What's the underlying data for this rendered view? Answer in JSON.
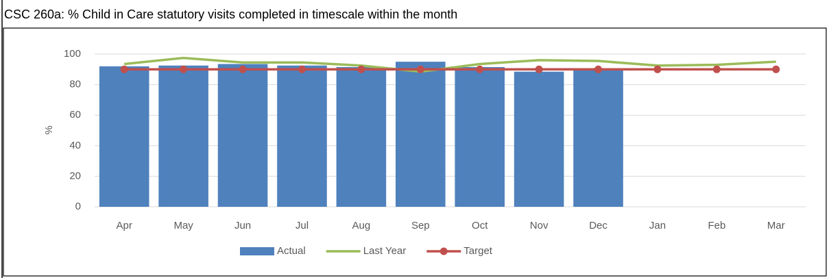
{
  "chart_data": {
    "type": "combo",
    "title": "CSC 260a: % Child in Care statutory visits completed in timescale within the month",
    "y_label": "%",
    "categories": [
      "Apr",
      "May",
      "Jun",
      "Jul",
      "Aug",
      "Sep",
      "Oct",
      "Nov",
      "Dec",
      "Jan",
      "Feb",
      "Mar"
    ],
    "series": [
      {
        "name": "Actual",
        "type": "bar",
        "color": "#4f81bd",
        "values": [
          92,
          92.5,
          93.5,
          92.5,
          91.5,
          95,
          91.5,
          88.5,
          90.5,
          null,
          null,
          null
        ]
      },
      {
        "name": "Last Year",
        "type": "line",
        "color": "#9bbb59",
        "values": [
          93.5,
          97.5,
          94.5,
          94.5,
          92.5,
          88.5,
          93.5,
          96,
          95.5,
          92.5,
          93,
          95
        ]
      },
      {
        "name": "Target",
        "type": "line",
        "color": "#c0504d",
        "marker": "circle",
        "values": [
          90,
          90,
          90,
          90,
          90,
          90,
          90,
          90,
          90,
          90,
          90,
          90
        ]
      }
    ],
    "ylim": [
      0,
      100
    ],
    "yticks": [
      0,
      20,
      40,
      60,
      80,
      100
    ],
    "grid": true,
    "legend": "bottom"
  }
}
